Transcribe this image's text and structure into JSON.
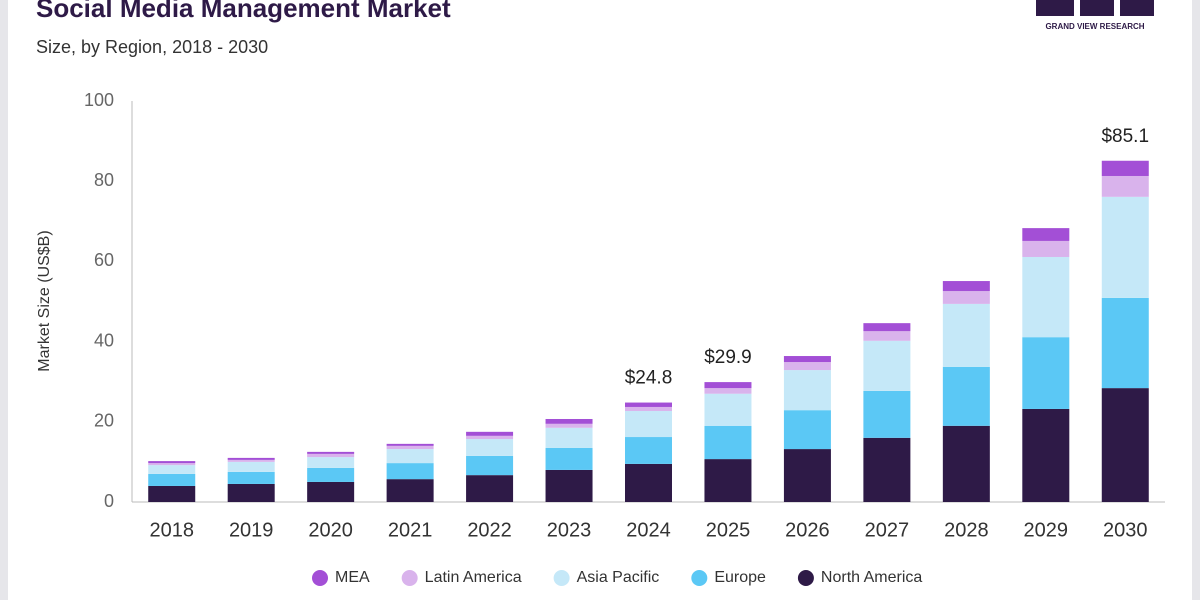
{
  "chart_data": {
    "type": "stacked_bar",
    "title": "Social Media Management Market",
    "subtitle": "Size, by Region, 2018 - 2030",
    "logo_text": "GRAND VIEW RESEARCH",
    "y_label": "Market Size (US$B)",
    "categories": [
      "2018",
      "2019",
      "2020",
      "2021",
      "2022",
      "2023",
      "2024",
      "2025",
      "2026",
      "2027",
      "2028",
      "2029",
      "2030"
    ],
    "series": [
      {
        "name": "North America",
        "color": "#2e1a47",
        "values": [
          4.0,
          4.5,
          5.0,
          5.7,
          6.7,
          8.0,
          9.5,
          10.7,
          13.2,
          16.0,
          19.0,
          23.2,
          28.4
        ]
      },
      {
        "name": "Europe",
        "color": "#5bc8f5",
        "values": [
          3.0,
          3.0,
          3.5,
          4.0,
          4.8,
          5.5,
          6.7,
          8.3,
          9.7,
          11.7,
          14.7,
          17.9,
          22.5
        ]
      },
      {
        "name": "Asia Pacific",
        "color": "#c5e8f8",
        "values": [
          2.2,
          2.5,
          2.7,
          3.5,
          4.2,
          5.0,
          6.5,
          8.0,
          10.0,
          12.5,
          15.7,
          20.0,
          25.2
        ]
      },
      {
        "name": "Latin America",
        "color": "#d9b3ec",
        "values": [
          0.5,
          0.5,
          0.8,
          0.8,
          0.8,
          1.0,
          1.0,
          1.4,
          2.0,
          2.4,
          3.2,
          4.0,
          5.2
        ]
      },
      {
        "name": "MEA",
        "color": "#a34fd6",
        "values": [
          0.5,
          0.5,
          0.5,
          0.5,
          1.0,
          1.2,
          1.1,
          1.5,
          1.5,
          2.0,
          2.5,
          3.2,
          3.8
        ]
      }
    ],
    "annotations": [
      {
        "x": "2024",
        "value": 24.8,
        "label": "$24.8"
      },
      {
        "x": "2025",
        "value": 29.9,
        "label": "$29.9"
      },
      {
        "x": "2030",
        "value": 85.1,
        "label": "$85.1"
      }
    ],
    "ylim": [
      0,
      100
    ],
    "yticks": [
      0,
      20,
      40,
      60,
      80,
      100
    ],
    "grid": false
  }
}
